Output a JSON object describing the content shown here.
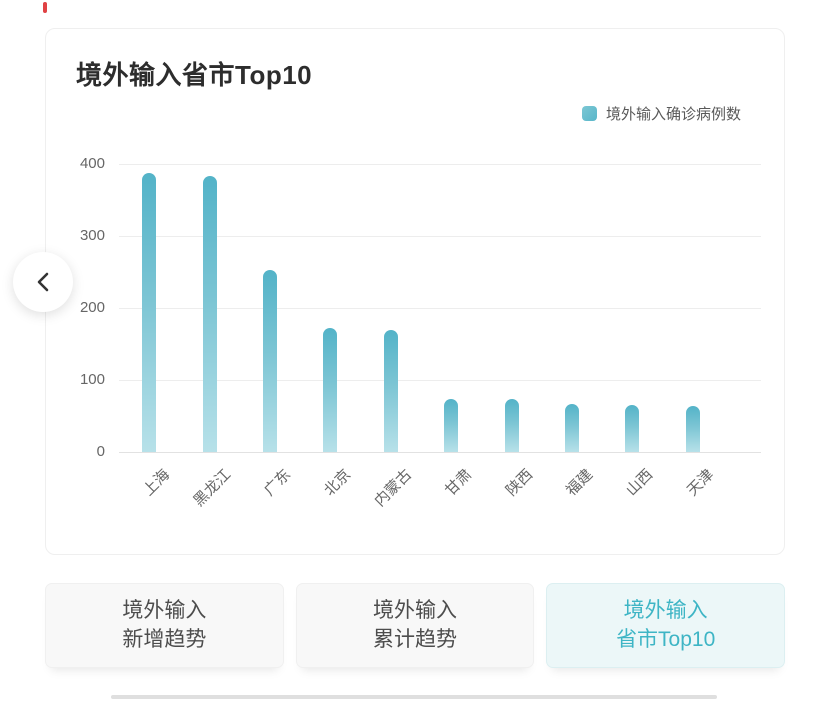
{
  "marks": {
    "red_tick_color": "#e04244"
  },
  "chart_data": {
    "type": "bar",
    "title": "境外输入省市Top10",
    "legend": {
      "label": "境外输入确诊病例数",
      "position": "top-right",
      "color": "#58b6c9"
    },
    "categories": [
      "上海",
      "黑龙江",
      "广东",
      "北京",
      "内蒙古",
      "甘肃",
      "陕西",
      "福建",
      "山西",
      "天津"
    ],
    "values": [
      387,
      383,
      253,
      172,
      170,
      74,
      73,
      66,
      65,
      64
    ],
    "xlabel": "",
    "ylabel": "",
    "ylim": [
      0,
      400
    ],
    "yticks": [
      0,
      100,
      200,
      300,
      400
    ],
    "grid": true,
    "bar_color_top": "#53b3c8",
    "bar_color_bottom": "#b7e1e9"
  },
  "nav": {
    "back_icon": "chevron-left"
  },
  "tabs": [
    {
      "line1": "境外输入",
      "line2": "新增趋势",
      "active": false
    },
    {
      "line1": "境外输入",
      "line2": "累计趋势",
      "active": false
    },
    {
      "line1": "境外输入",
      "line2": "省市Top10",
      "active": true
    }
  ]
}
